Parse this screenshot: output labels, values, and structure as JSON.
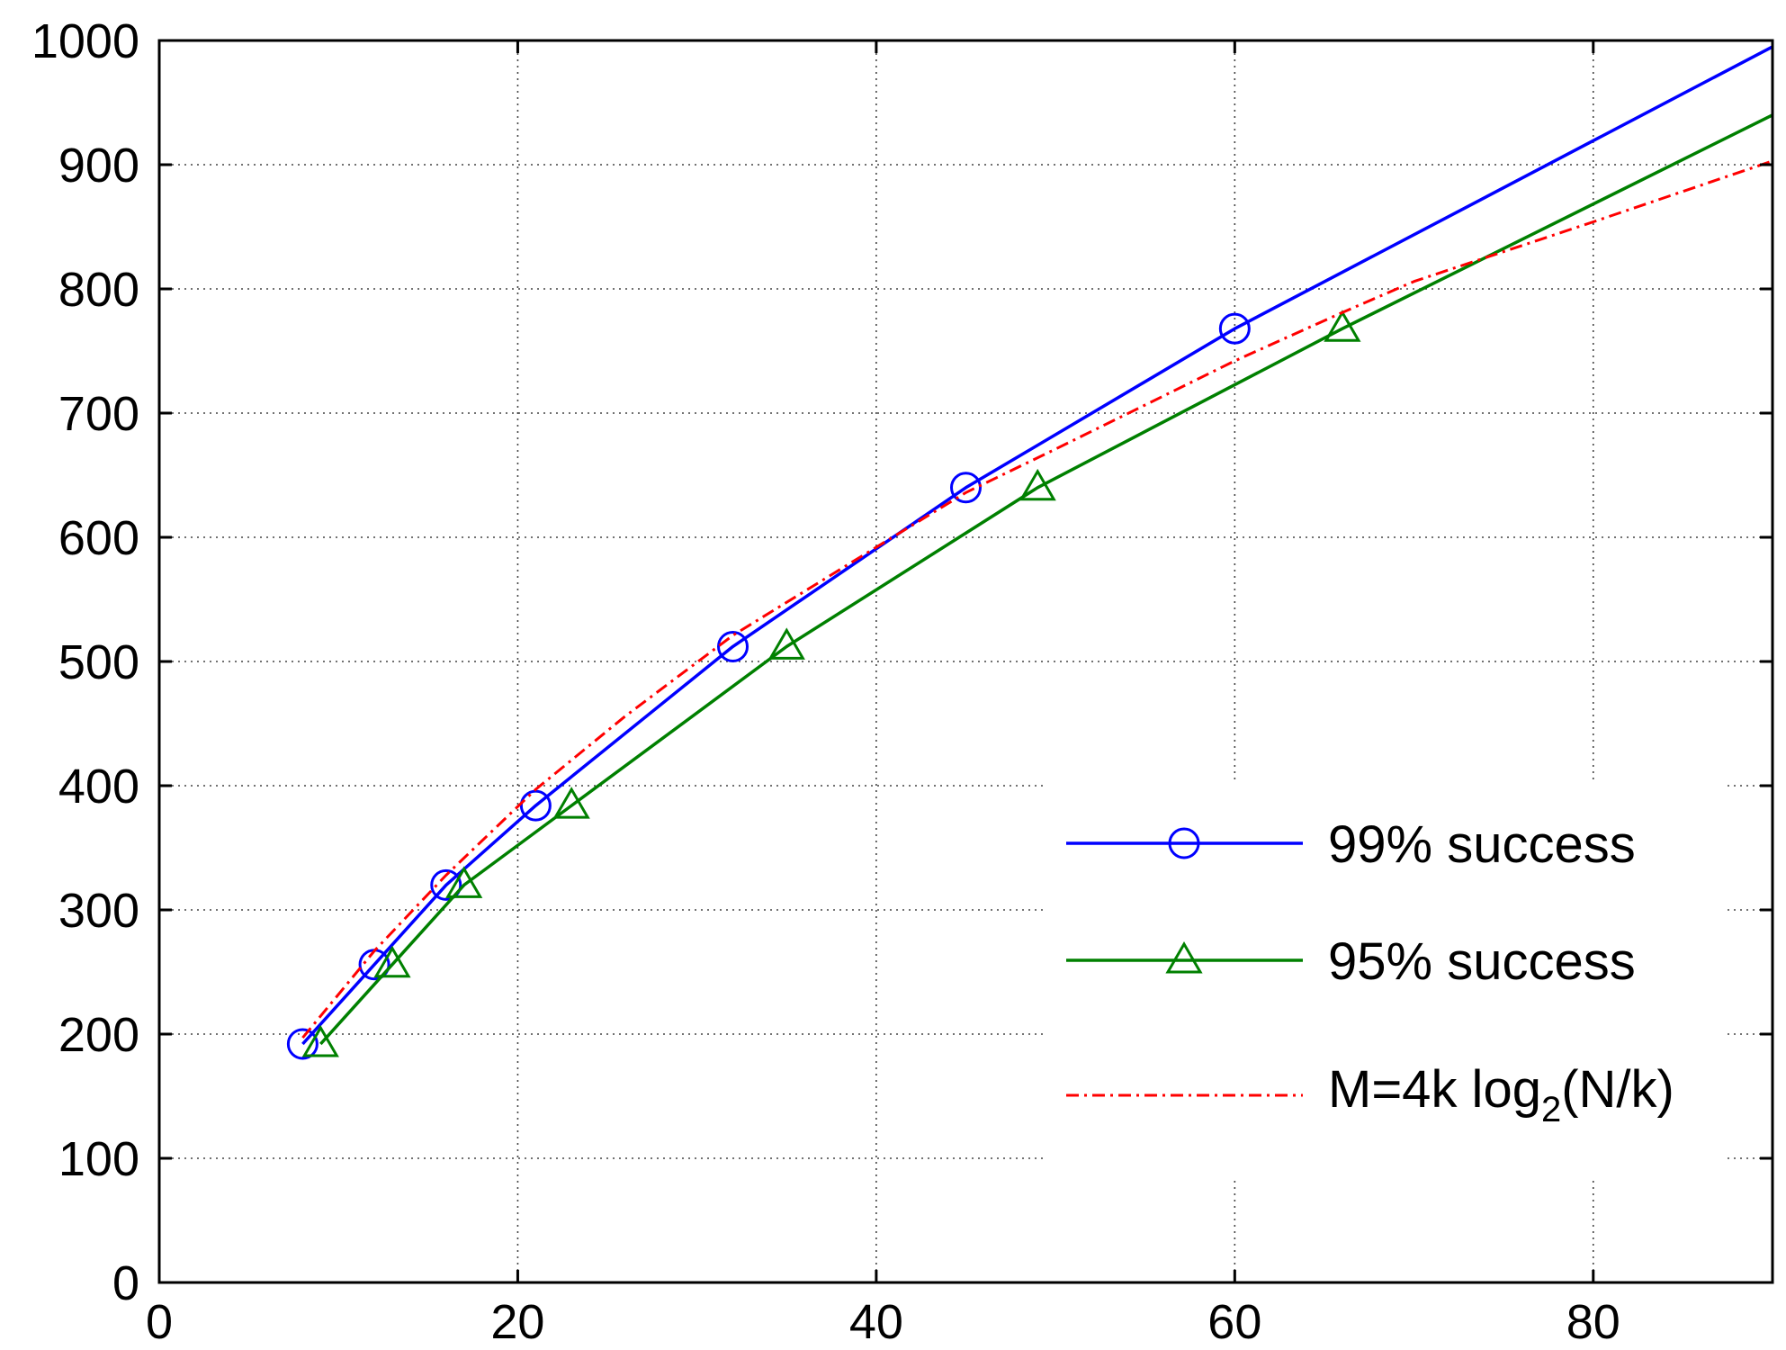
{
  "chart_data": {
    "type": "line",
    "title": "",
    "xlabel": "",
    "ylabel": "",
    "xlim": [
      0,
      90
    ],
    "ylim": [
      0,
      1000
    ],
    "xticks": [
      0,
      20,
      40,
      60,
      80
    ],
    "yticks": [
      0,
      100,
      200,
      300,
      400,
      500,
      600,
      700,
      800,
      900,
      1000
    ],
    "grid": true,
    "legend_position": "lower-right",
    "series": [
      {
        "name": "99% success",
        "color": "#0000ff",
        "line_style": "solid",
        "marker": "circle",
        "x": [
          8,
          12,
          16,
          21,
          32,
          45,
          60,
          90
        ],
        "y": [
          192,
          256,
          320,
          384,
          512,
          640,
          768,
          995
        ],
        "marker_x": [
          8,
          12,
          16,
          21,
          32,
          45,
          60
        ],
        "marker_y": [
          192,
          256,
          320,
          384,
          512,
          640,
          768
        ]
      },
      {
        "name": "95% success",
        "color": "#008000",
        "line_style": "solid",
        "marker": "triangle",
        "x": [
          9,
          13,
          17,
          23,
          35,
          49,
          66,
          90
        ],
        "y": [
          192,
          256,
          320,
          384,
          512,
          640,
          768,
          940
        ],
        "marker_x": [
          9,
          13,
          17,
          23,
          35,
          49,
          66
        ],
        "marker_y": [
          192,
          256,
          320,
          384,
          512,
          640,
          768
        ]
      },
      {
        "name": "M=4k log",
        "name_subscript": "2",
        "name_suffix": "(N/k)",
        "color": "#ff0000",
        "line_style": "dash-dot",
        "marker": "none",
        "x": [
          8,
          12,
          16,
          21,
          26,
          32,
          40,
          45,
          50,
          60,
          66,
          70,
          80,
          90
        ],
        "y": [
          197,
          267,
          328,
          397,
          456,
          521,
          592,
          636,
          671,
          742,
          781,
          806,
          854,
          903
        ]
      }
    ]
  }
}
